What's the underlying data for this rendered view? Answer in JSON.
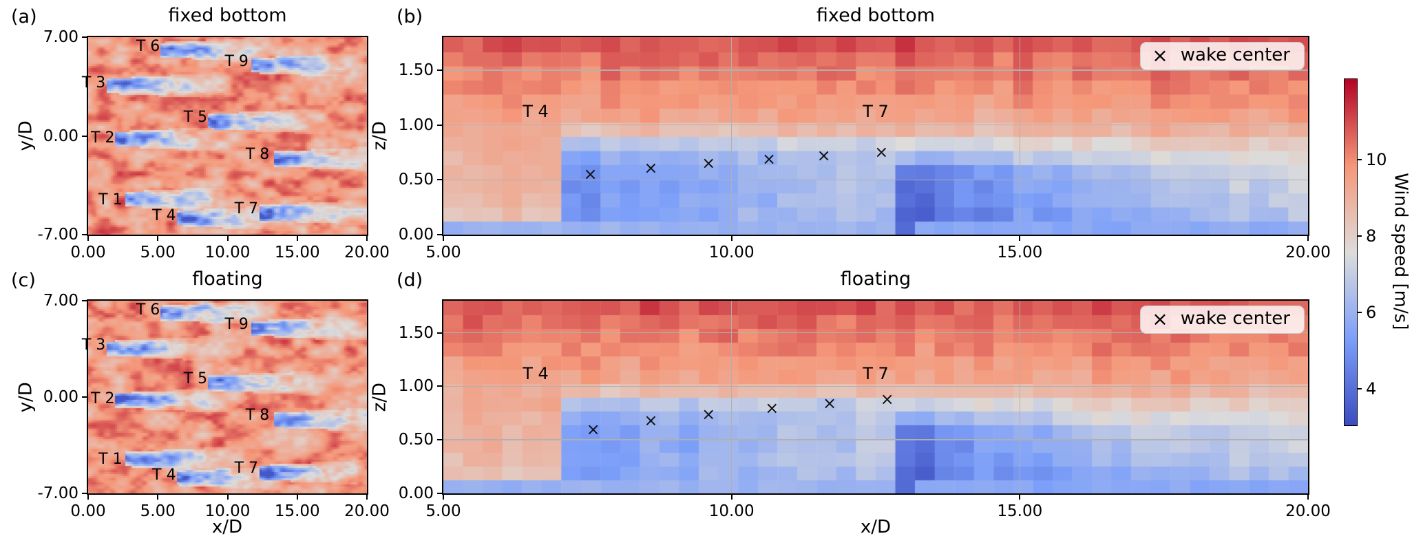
{
  "chart_data": {
    "type": "heatmap",
    "colormap": "coolwarm",
    "color_range": {
      "vmin": 3.05,
      "vmax": 12.1
    },
    "colorbar": {
      "label": "Wind speed [m/s]",
      "tick_labels": [
        "10",
        "8",
        "6",
        "4"
      ],
      "tick_values": [
        10,
        8,
        6,
        4
      ]
    },
    "legend": {
      "marker": "×",
      "label": "wake center",
      "position": "upper right"
    },
    "panels": [
      {
        "key": "a",
        "corner_label": "(a)",
        "title": "fixed bottom",
        "view": "top",
        "xlabel": "",
        "ylabel": "y/D",
        "xlim": [
          0,
          20
        ],
        "ylim": [
          -7,
          7
        ],
        "xtick_labels": [
          "0.00",
          "5.00",
          "10.00",
          "15.00",
          "20.00"
        ],
        "xtick_values": [
          0,
          5,
          10,
          15,
          20
        ],
        "ytick_labels": [
          "7.00",
          "0.00",
          "-7.00"
        ],
        "ytick_values": [
          7,
          0,
          -7
        ],
        "grid_x": [],
        "grid_y": [],
        "turbines": [
          {
            "label": "T 1",
            "label_x": 1.6,
            "label_y": -4.55,
            "rotor_x": 2.65,
            "rotor_y": -4.45
          },
          {
            "label": "T 2",
            "label_x": 1.05,
            "label_y": -0.15,
            "rotor_x": 2.0,
            "rotor_y": -0.2
          },
          {
            "label": "T 3",
            "label_x": 0.4,
            "label_y": 3.75,
            "rotor_x": 1.35,
            "rotor_y": 3.55
          },
          {
            "label": "T 4",
            "label_x": 5.45,
            "label_y": -5.7,
            "rotor_x": 6.3,
            "rotor_y": -5.8
          },
          {
            "label": "T 5",
            "label_x": 7.7,
            "label_y": 1.3,
            "rotor_x": 8.65,
            "rotor_y": 1.05
          },
          {
            "label": "T 6",
            "label_x": 4.3,
            "label_y": 6.3,
            "rotor_x": 5.15,
            "rotor_y": 6.1
          },
          {
            "label": "T 7",
            "label_x": 11.35,
            "label_y": -5.2,
            "rotor_x": 12.25,
            "rotor_y": -5.4
          },
          {
            "label": "T 8",
            "label_x": 12.15,
            "label_y": -1.35,
            "rotor_x": 13.35,
            "rotor_y": -1.6
          },
          {
            "label": "T 9",
            "label_x": 10.65,
            "label_y": 5.25,
            "rotor_x": 11.65,
            "rotor_y": 5.0
          }
        ],
        "wake_centers": []
      },
      {
        "key": "b",
        "corner_label": "(b)",
        "title": "fixed bottom",
        "view": "side",
        "xlabel": "",
        "ylabel": "z/D",
        "xlim": [
          5,
          20
        ],
        "ylim": [
          0,
          1.8
        ],
        "xtick_labels": [
          "5.00",
          "10.00",
          "15.00",
          "20.00"
        ],
        "xtick_values": [
          5,
          10,
          15,
          20
        ],
        "ytick_labels": [
          "0.00",
          "0.50",
          "1.00",
          "1.50"
        ],
        "ytick_values": [
          0,
          0.5,
          1,
          1.5
        ],
        "grid_x": [
          10,
          15
        ],
        "grid_y": [
          0.5,
          1.0,
          1.5
        ],
        "turbine_labels": [
          {
            "label": "T 4",
            "x": 6.6,
            "y": 1.12
          },
          {
            "label": "T 7",
            "x": 12.5,
            "y": 1.12
          }
        ],
        "rotor_x": [
          6.9,
          12.7
        ],
        "wake_centers": [
          {
            "x": 7.55,
            "z": 0.55
          },
          {
            "x": 8.6,
            "z": 0.61
          },
          {
            "x": 9.6,
            "z": 0.65
          },
          {
            "x": 10.65,
            "z": 0.69
          },
          {
            "x": 11.6,
            "z": 0.72
          },
          {
            "x": 12.6,
            "z": 0.75
          }
        ],
        "has_legend": true
      },
      {
        "key": "c",
        "corner_label": "(c)",
        "title": "floating",
        "view": "top",
        "xlabel": "x/D",
        "ylabel": "y/D",
        "xlim": [
          0,
          20
        ],
        "ylim": [
          -7,
          7
        ],
        "xtick_labels": [
          "0.00",
          "5.00",
          "10.00",
          "15.00",
          "20.00"
        ],
        "xtick_values": [
          0,
          5,
          10,
          15,
          20
        ],
        "ytick_labels": [
          "7.00",
          "0.00",
          "-7.00"
        ],
        "ytick_values": [
          7,
          0,
          -7
        ],
        "grid_x": [],
        "grid_y": [],
        "turbines": [
          {
            "label": "T 1",
            "label_x": 1.6,
            "label_y": -4.55,
            "rotor_x": 2.65,
            "rotor_y": -4.45
          },
          {
            "label": "T 2",
            "label_x": 1.05,
            "label_y": -0.15,
            "rotor_x": 2.0,
            "rotor_y": -0.2
          },
          {
            "label": "T 3",
            "label_x": 0.4,
            "label_y": 3.75,
            "rotor_x": 1.35,
            "rotor_y": 3.55
          },
          {
            "label": "T 4",
            "label_x": 5.45,
            "label_y": -5.7,
            "rotor_x": 6.3,
            "rotor_y": -5.8
          },
          {
            "label": "T 5",
            "label_x": 7.7,
            "label_y": 1.3,
            "rotor_x": 8.65,
            "rotor_y": 1.05
          },
          {
            "label": "T 6",
            "label_x": 4.3,
            "label_y": 6.3,
            "rotor_x": 5.15,
            "rotor_y": 6.1
          },
          {
            "label": "T 7",
            "label_x": 11.35,
            "label_y": -5.2,
            "rotor_x": 12.25,
            "rotor_y": -5.4
          },
          {
            "label": "T 8",
            "label_x": 12.15,
            "label_y": -1.35,
            "rotor_x": 13.35,
            "rotor_y": -1.6
          },
          {
            "label": "T 9",
            "label_x": 10.65,
            "label_y": 5.25,
            "rotor_x": 11.65,
            "rotor_y": 5.0
          }
        ],
        "wake_centers": []
      },
      {
        "key": "d",
        "corner_label": "(d)",
        "title": "floating",
        "view": "side",
        "xlabel": "x/D",
        "ylabel": "z/D",
        "xlim": [
          5,
          20
        ],
        "ylim": [
          0,
          1.8
        ],
        "xtick_labels": [
          "5.00",
          "10.00",
          "15.00",
          "20.00"
        ],
        "xtick_values": [
          5,
          10,
          15,
          20
        ],
        "ytick_labels": [
          "0.00",
          "0.50",
          "1.00",
          "1.50"
        ],
        "ytick_values": [
          0,
          0.5,
          1,
          1.5
        ],
        "grid_x": [
          10,
          15
        ],
        "grid_y": [
          0.5,
          1.0,
          1.5
        ],
        "turbine_labels": [
          {
            "label": "T 4",
            "x": 6.6,
            "y": 1.12
          },
          {
            "label": "T 7",
            "x": 12.5,
            "y": 1.12
          }
        ],
        "rotor_x": [
          6.9,
          12.7
        ],
        "wake_centers": [
          {
            "x": 7.6,
            "z": 0.6
          },
          {
            "x": 8.6,
            "z": 0.68
          },
          {
            "x": 9.6,
            "z": 0.74
          },
          {
            "x": 10.7,
            "z": 0.8
          },
          {
            "x": 11.7,
            "z": 0.84
          },
          {
            "x": 12.7,
            "z": 0.88
          }
        ],
        "has_legend": true
      }
    ]
  }
}
